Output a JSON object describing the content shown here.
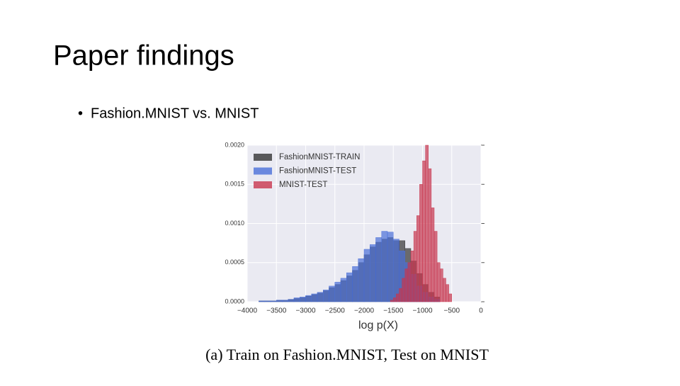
{
  "title": "Paper findings",
  "bullets": [
    "Fashion.MNIST vs. MNIST"
  ],
  "caption": "(a) Train on Fashion.MNIST, Test on MNIST",
  "chart_data": {
    "type": "histogram",
    "xlabel": "log p(X)",
    "xlim": [
      -4000,
      0
    ],
    "xticks": [
      {
        "value": -4000,
        "label": "−4000"
      },
      {
        "value": -3500,
        "label": "−3500"
      },
      {
        "value": -3000,
        "label": "−3000"
      },
      {
        "value": -2500,
        "label": "−2500"
      },
      {
        "value": -2000,
        "label": "−2000"
      },
      {
        "value": -1500,
        "label": "−1500"
      },
      {
        "value": -1000,
        "label": "−1000"
      },
      {
        "value": -500,
        "label": "−500"
      },
      0
    ],
    "ylim": [
      0,
      0.002
    ],
    "yticks": [
      {
        "value": 0,
        "label": "0.0000"
      },
      {
        "value": 0.0005,
        "label": "0.0005"
      },
      {
        "value": 0.001,
        "label": "0.0010"
      },
      {
        "value": 0.0015,
        "label": "0.0015"
      },
      {
        "value": 0.002,
        "label": "0.0020"
      }
    ],
    "grid": true,
    "legend": "upper left",
    "series": [
      {
        "name": "FashionMNIST-TRAIN",
        "color": "#333333",
        "bins": [
          -3800,
          -3700,
          -3600,
          -3500,
          -3400,
          -3300,
          -3200,
          -3100,
          -3000,
          -2900,
          -2800,
          -2700,
          -2600,
          -2500,
          -2400,
          -2300,
          -2200,
          -2100,
          -2000,
          -1900,
          -1800,
          -1700,
          -1600,
          -1500,
          -1400,
          -1300,
          -1200,
          -1100,
          -1000,
          -900,
          -800,
          -700
        ],
        "values": [
          1e-05,
          1e-05,
          1e-05,
          2e-05,
          2e-05,
          3e-05,
          4e-05,
          5e-05,
          7e-05,
          9e-05,
          0.00011,
          0.00014,
          0.00018,
          0.00022,
          0.00027,
          0.00033,
          0.0004,
          0.0005,
          0.0006,
          0.0007,
          0.00076,
          0.0008,
          0.00082,
          0.00078,
          0.00078,
          0.00068,
          0.00052,
          0.00036,
          0.00022,
          0.00012,
          6e-05
        ]
      },
      {
        "name": "FashionMNIST-TEST",
        "color": "#4a6fd8",
        "bins": [
          -3800,
          -3700,
          -3600,
          -3500,
          -3400,
          -3300,
          -3200,
          -3100,
          -3000,
          -2900,
          -2800,
          -2700,
          -2600,
          -2500,
          -2400,
          -2300,
          -2200,
          -2100,
          -2000,
          -1900,
          -1800,
          -1700,
          -1600,
          -1500,
          -1400,
          -1300,
          -1200,
          -1100,
          -1000,
          -900,
          -800,
          -700
        ],
        "values": [
          1e-05,
          1e-05,
          1e-05,
          2e-05,
          2e-05,
          3e-05,
          5e-05,
          6e-05,
          8e-05,
          0.0001,
          0.00012,
          0.00015,
          0.0002,
          0.00025,
          0.0003,
          0.00037,
          0.00045,
          0.00055,
          0.00067,
          0.00073,
          0.00082,
          0.0009,
          0.00089,
          0.0008,
          0.00065,
          0.0005,
          0.00035,
          0.0002,
          0.00012,
          6e-05,
          3e-05
        ]
      },
      {
        "name": "MNIST-TEST",
        "color": "#c8364e",
        "bins": [
          -1550,
          -1500,
          -1450,
          -1400,
          -1350,
          -1300,
          -1250,
          -1200,
          -1150,
          -1100,
          -1050,
          -1000,
          -950,
          -900,
          -850,
          -800,
          -750,
          -700,
          -650,
          -600,
          -550,
          -500
        ],
        "values": [
          2e-05,
          5e-05,
          0.0001,
          0.00017,
          0.0003,
          0.00042,
          0.0005,
          0.00065,
          0.0009,
          0.0011,
          0.0015,
          0.0018,
          0.002,
          0.0017,
          0.0012,
          0.0009,
          0.0005,
          0.00042,
          0.0003,
          0.00022,
          0.0001
        ]
      }
    ]
  }
}
